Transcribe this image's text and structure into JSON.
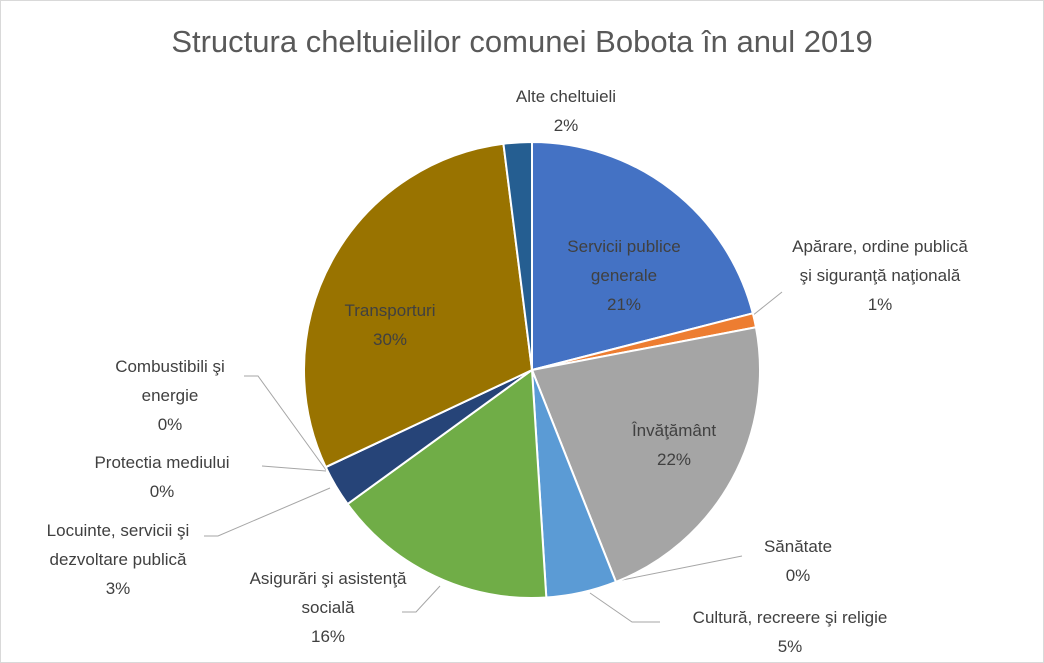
{
  "chart_data": {
    "type": "pie",
    "title": "Structura cheltuielilor comunei Bobota în anul 2019",
    "categories": [
      "Servicii publice generale",
      "Apărare, ordine publică şi siguranţă naţională",
      "Învăţământ",
      "Sănătate",
      "Cultură, recreere şi religie",
      "Asigurări şi asistenţă socială",
      "Locuinte, servicii şi dezvoltare publică",
      "Protectia mediului",
      "Combustibili şi energie",
      "Transporturi",
      "Alte cheltuieli"
    ],
    "values": [
      21,
      1,
      22,
      0,
      5,
      16,
      3,
      0,
      0,
      30,
      2
    ],
    "value_labels": [
      "21%",
      "1%",
      "22%",
      "0%",
      "5%",
      "16%",
      "3%",
      "0%",
      "0%",
      "30%",
      "2%"
    ],
    "colors": [
      "#4472c4",
      "#ed7d31",
      "#a5a5a5",
      "#ffc000",
      "#5b9bd5",
      "#70ad47",
      "#264478",
      "#9e480e",
      "#636363",
      "#997300",
      "#255e91"
    ]
  }
}
